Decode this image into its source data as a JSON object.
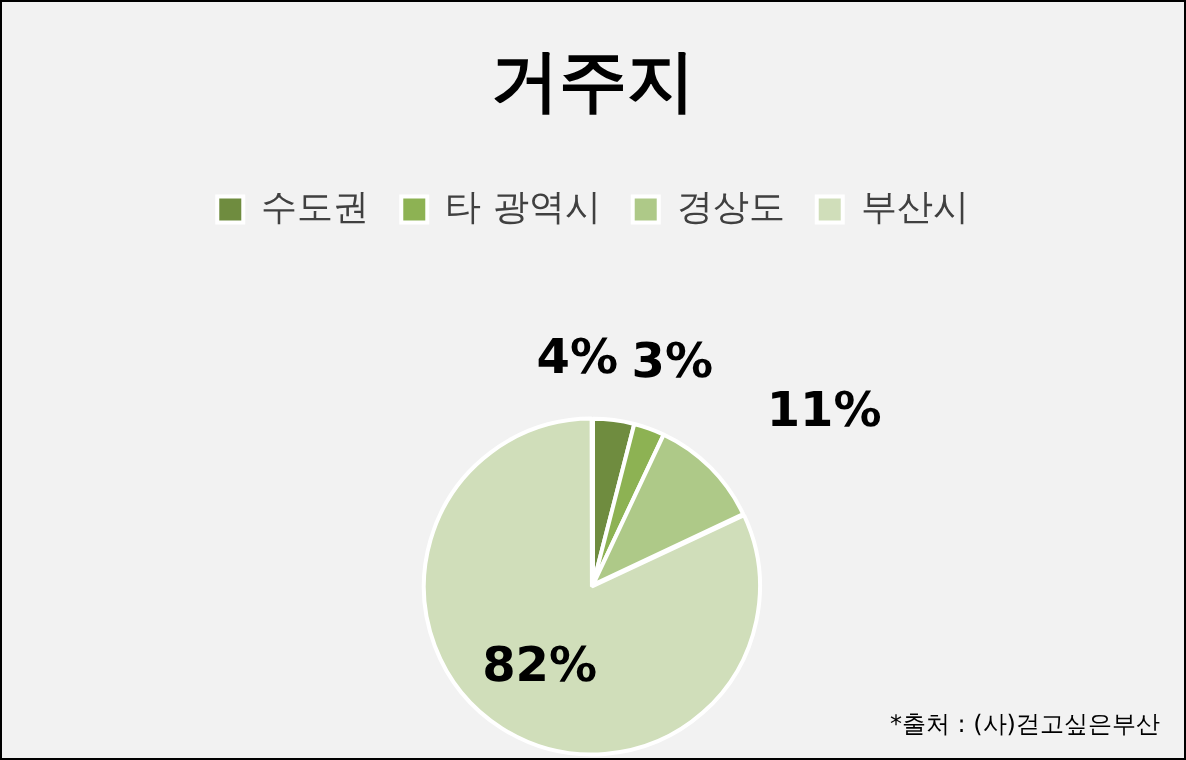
{
  "chart_data": {
    "type": "pie",
    "title": "거주지",
    "categories": [
      "수도권",
      "타 광역시",
      "경상도",
      "부산시"
    ],
    "values": [
      4,
      3,
      11,
      82
    ],
    "colors": [
      "#6f8c3f",
      "#8db253",
      "#aec988",
      "#d0deba"
    ],
    "value_labels": [
      "4%",
      "3%",
      "11%",
      "82%"
    ],
    "legend": "top",
    "annotations": [
      "*출처 : (사)걷고싶은부산"
    ]
  }
}
